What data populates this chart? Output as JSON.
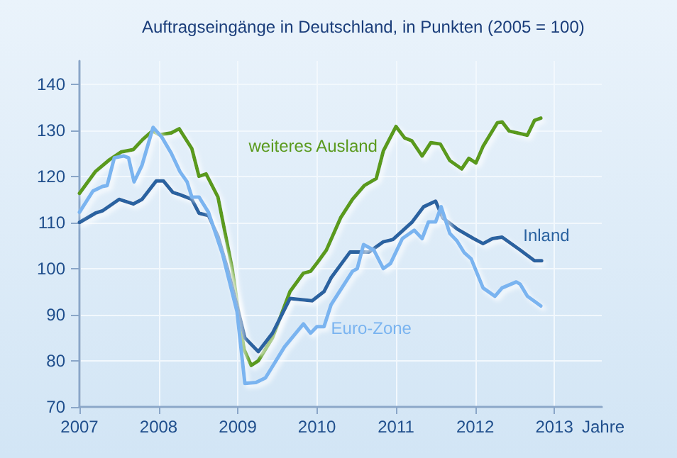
{
  "chart_data": {
    "type": "line",
    "title": "Auftragseingänge in Deutschland, in Punkten (2005 = 100)",
    "xlabel": "Jahre",
    "xlim": [
      2007,
      2013.6
    ],
    "xticks": [
      2007,
      2008,
      2009,
      2010,
      2011,
      2012,
      2013
    ],
    "ylim": [
      70,
      145
    ],
    "yticks": [
      70,
      80,
      90,
      100,
      110,
      120,
      130,
      140
    ],
    "grid": true,
    "legend": false,
    "marker": "none",
    "line_style": "solid",
    "series": [
      {
        "name": "weiteres Ausland",
        "color": "#5a9a1e",
        "x": [
          2007.0,
          2007.2,
          2007.38,
          2007.53,
          2007.68,
          2007.8,
          2007.92,
          2008.01,
          2008.16,
          2008.26,
          2008.42,
          2008.51,
          2008.6,
          2008.75,
          2008.93,
          2009.08,
          2009.17,
          2009.26,
          2009.44,
          2009.66,
          2009.83,
          2009.92,
          2010.01,
          2010.12,
          2010.3,
          2010.45,
          2010.6,
          2010.75,
          2010.84,
          2011.0,
          2011.11,
          2011.2,
          2011.33,
          2011.44,
          2011.56,
          2011.68,
          2011.83,
          2011.92,
          2012.01,
          2012.1,
          2012.28,
          2012.34,
          2012.43,
          2012.66,
          2012.75,
          2012.83
        ],
        "values": [
          116.3,
          121,
          123.6,
          125.3,
          125.8,
          128,
          129.8,
          129,
          129.4,
          130.3,
          126,
          120,
          120.5,
          115.5,
          100,
          82.5,
          79,
          80,
          85,
          95,
          99,
          99.4,
          101.4,
          104,
          111,
          115,
          118,
          119.5,
          125.5,
          130.8,
          128.3,
          127.7,
          124.4,
          127.3,
          127,
          123.4,
          121.6,
          123.9,
          122.9,
          126.5,
          131.6,
          131.8,
          129.8,
          128.9,
          132.1,
          132.6
        ]
      },
      {
        "name": "Inland",
        "color": "#2a62a0",
        "x": [
          2007.0,
          2007.2,
          2007.29,
          2007.5,
          2007.68,
          2007.79,
          2007.97,
          2008.06,
          2008.18,
          2008.27,
          2008.42,
          2008.51,
          2008.63,
          2008.75,
          2008.87,
          2008.99,
          2009.09,
          2009.26,
          2009.44,
          2009.66,
          2009.94,
          2010.09,
          2010.18,
          2010.42,
          2010.66,
          2010.84,
          2010.96,
          2011.2,
          2011.35,
          2011.5,
          2011.59,
          2011.77,
          2011.98,
          2012.1,
          2012.22,
          2012.34,
          2012.57,
          2012.75,
          2012.84
        ],
        "values": [
          110,
          112,
          112.5,
          115,
          114,
          115,
          119,
          119,
          116.5,
          116,
          115,
          112,
          111.5,
          107,
          100,
          92,
          85,
          82,
          86,
          93.5,
          93,
          95,
          98,
          103.6,
          103.6,
          105.8,
          106.3,
          110,
          113.4,
          114.6,
          111,
          108.6,
          106.5,
          105.4,
          106.5,
          106.8,
          104,
          101.7,
          101.7
        ]
      },
      {
        "name": "Euro-Zone",
        "color": "#7ab4f0",
        "x": [
          2007.0,
          2007.17,
          2007.29,
          2007.35,
          2007.44,
          2007.56,
          2007.62,
          2007.69,
          2007.79,
          2007.93,
          2008.04,
          2008.16,
          2008.27,
          2008.36,
          2008.42,
          2008.51,
          2008.63,
          2008.81,
          2008.99,
          2009.09,
          2009.23,
          2009.35,
          2009.59,
          2009.71,
          2009.83,
          2009.92,
          2010.0,
          2010.09,
          2010.18,
          2010.45,
          2010.51,
          2010.59,
          2010.72,
          2010.84,
          2010.93,
          2011.08,
          2011.23,
          2011.33,
          2011.41,
          2011.5,
          2011.57,
          2011.68,
          2011.77,
          2011.86,
          2011.95,
          2012.1,
          2012.25,
          2012.34,
          2012.52,
          2012.57,
          2012.66,
          2012.83
        ],
        "values": [
          112.2,
          116.8,
          117.8,
          118,
          124,
          124.4,
          124,
          118.8,
          122.4,
          130.6,
          128.5,
          125,
          121,
          118.8,
          115.5,
          115.5,
          112.2,
          103,
          90.7,
          75.1,
          75.3,
          76.3,
          83,
          85.5,
          88,
          86,
          87.4,
          87.4,
          92.2,
          99.4,
          100,
          105.2,
          104,
          100,
          101.1,
          106.5,
          108.3,
          106.5,
          110.1,
          110.1,
          113.4,
          107.6,
          106,
          103.5,
          102.1,
          95.8,
          94,
          95.8,
          97.1,
          96.6,
          94,
          91.9
        ]
      }
    ]
  }
}
